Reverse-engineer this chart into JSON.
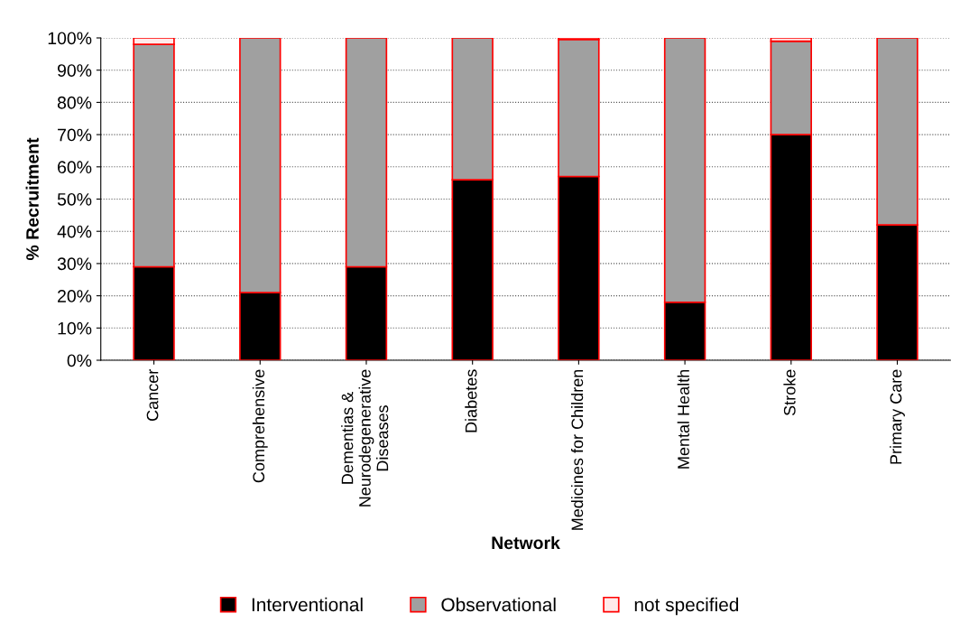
{
  "chart_data": {
    "type": "bar",
    "stacked": true,
    "xlabel": "Network",
    "ylabel": "% Recruitment",
    "categories": [
      "Cancer",
      "Comprehensive",
      "Dementias &\nNeurodegenerative\nDiseases",
      "Diabetes",
      "Medicines for Children",
      "Mental Health",
      "Stroke",
      "Primary Care"
    ],
    "series": [
      {
        "name": "Interventional",
        "color": "#000000",
        "values": [
          29,
          21,
          29,
          56,
          57,
          18,
          70,
          42
        ]
      },
      {
        "name": "Observational",
        "color": "#a0a0a0",
        "values": [
          69,
          79,
          71,
          44,
          42.5,
          82,
          29,
          58
        ]
      },
      {
        "name": "not specified",
        "color": "#ffeaea",
        "values": [
          2,
          0,
          0,
          0,
          0.5,
          0,
          1,
          0
        ]
      }
    ],
    "ylim": [
      0,
      100
    ],
    "yticks": [
      {
        "value": 0,
        "label": "0%"
      },
      {
        "value": 10,
        "label": "10%"
      },
      {
        "value": 20,
        "label": "20%"
      },
      {
        "value": 30,
        "label": "30%"
      },
      {
        "value": 40,
        "label": "40%"
      },
      {
        "value": 50,
        "label": "50%"
      },
      {
        "value": 60,
        "label": "60%"
      },
      {
        "value": 70,
        "label": "70%"
      },
      {
        "value": 80,
        "label": "80%"
      },
      {
        "value": 90,
        "label": "90%"
      },
      {
        "value": 100,
        "label": "100%"
      }
    ],
    "grid": "y",
    "legend": "bottom"
  }
}
